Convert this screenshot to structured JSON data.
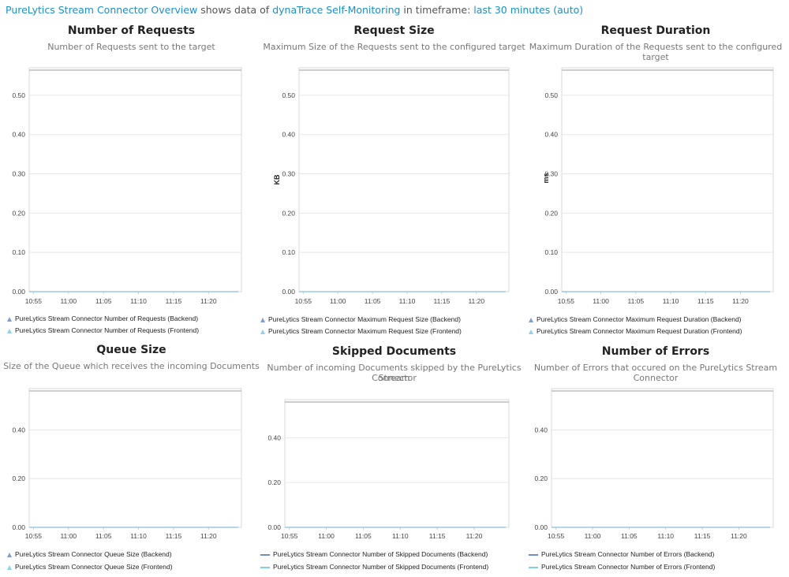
{
  "header": {
    "dashboard": "PureLytics Stream Connector Overview",
    "text1": "shows data of",
    "source": "dynaTrace Self-Monitoring",
    "text2": "in timeframe:",
    "timeframe": "last 30 minutes (auto)"
  },
  "colors": {
    "link": "#1a8fc9",
    "backend": "#7fa0cf",
    "frontend": "#8fd3e8",
    "grid": "#e6e6e6"
  },
  "panels": [
    {
      "title": "Number of Requests",
      "subtitle": [
        "Number of Requests sent to the target"
      ],
      "ylabel": "",
      "legend_style": "triangle",
      "legend": [
        "PureLytics Stream Connector Number of Requests (Backend)",
        "PureLytics Stream Connector Number of Requests (Frontend)"
      ]
    },
    {
      "title": "Request Size",
      "subtitle": [
        "Maximum Size of the Requests sent to the configured target"
      ],
      "ylabel": "KB",
      "legend_style": "triangle",
      "legend": [
        "PureLytics Stream Connector Maximum Request Size (Backend)",
        "PureLytics Stream Connector Maximum Request Size (Frontend)"
      ]
    },
    {
      "title": "Request Duration",
      "subtitle": [
        "Maximum Duration of the Requests sent to the configured target"
      ],
      "ylabel": "ms",
      "legend_style": "triangle",
      "legend": [
        "PureLytics Stream Connector Maximum Request Duration (Backend)",
        "PureLytics Stream Connector Maximum Request Duration (Frontend)"
      ]
    },
    {
      "title": "Queue Size",
      "subtitle": [
        "Size of the Queue which receives the incoming Documents"
      ],
      "ylabel": "",
      "legend_style": "triangle",
      "legend": [
        "PureLytics Stream Connector Queue Size (Backend)",
        "PureLytics Stream Connector Queue Size (Frontend)"
      ]
    },
    {
      "title": "Skipped Documents",
      "subtitle": [
        "Number of incoming Documents skipped by the PureLytics Stream",
        "Connector"
      ],
      "ylabel": "",
      "legend_style": "line",
      "legend": [
        "PureLytics Stream Connector Number of Skipped Documents (Backend)",
        "PureLytics Stream Connector Number of Skipped Documents (Frontend)"
      ]
    },
    {
      "title": "Number of Errors",
      "subtitle": [
        "Number of Errors that occured on the PureLytics Stream Connector"
      ],
      "ylabel": "",
      "legend_style": "line",
      "legend": [
        "PureLytics Stream Connector Number of Errors (Backend)",
        "PureLytics Stream Connector Number of Errors (Frontend)"
      ]
    }
  ],
  "chart_data": [
    {
      "type": "line",
      "title": "Number of Requests",
      "ylabel": "",
      "x": [
        "10:55",
        "11:00",
        "11:05",
        "11:10",
        "11:15",
        "11:20"
      ],
      "yticks": [
        "0.00",
        "0.10",
        "0.20",
        "0.30",
        "0.40",
        "0.50"
      ],
      "ylim": [
        0,
        0.57
      ],
      "grid": true,
      "legend": "bottom",
      "series": [
        {
          "name": "PureLytics Stream Connector Number of Requests (Backend)",
          "values": [
            0,
            0,
            0,
            0,
            0,
            0
          ]
        },
        {
          "name": "PureLytics Stream Connector Number of Requests (Frontend)",
          "values": [
            0,
            0,
            0,
            0,
            0,
            0
          ]
        }
      ]
    },
    {
      "type": "line",
      "title": "Request Size",
      "ylabel": "KB",
      "x": [
        "10:55",
        "11:00",
        "11:05",
        "11:10",
        "11:15",
        "11:20"
      ],
      "yticks": [
        "0.00",
        "0.10",
        "0.20",
        "0.30",
        "0.40",
        "0.50"
      ],
      "ylim": [
        0,
        0.57
      ],
      "grid": true,
      "legend": "bottom",
      "series": [
        {
          "name": "PureLytics Stream Connector Maximum Request Size (Backend)",
          "values": [
            0,
            0,
            0,
            0,
            0,
            0
          ]
        },
        {
          "name": "PureLytics Stream Connector Maximum Request Size (Frontend)",
          "values": [
            0,
            0,
            0,
            0,
            0,
            0
          ]
        }
      ]
    },
    {
      "type": "line",
      "title": "Request Duration",
      "ylabel": "ms",
      "x": [
        "10:55",
        "11:00",
        "11:05",
        "11:10",
        "11:15",
        "11:20"
      ],
      "yticks": [
        "0.00",
        "0.10",
        "0.20",
        "0.30",
        "0.40",
        "0.50"
      ],
      "ylim": [
        0,
        0.57
      ],
      "grid": true,
      "legend": "bottom",
      "series": [
        {
          "name": "PureLytics Stream Connector Maximum Request Duration (Backend)",
          "values": [
            0,
            0,
            0,
            0,
            0,
            0
          ]
        },
        {
          "name": "PureLytics Stream Connector Maximum Request Duration (Frontend)",
          "values": [
            0,
            0,
            0,
            0,
            0,
            0
          ]
        }
      ]
    },
    {
      "type": "line",
      "title": "Queue Size",
      "ylabel": "",
      "x": [
        "10:55",
        "11:00",
        "11:05",
        "11:10",
        "11:15",
        "11:20"
      ],
      "yticks": [
        "0.00",
        "0.20",
        "0.40"
      ],
      "ylim": [
        0,
        0.57
      ],
      "grid": true,
      "legend": "bottom",
      "series": [
        {
          "name": "PureLytics Stream Connector Queue Size (Backend)",
          "values": [
            0,
            0,
            0,
            0,
            0,
            0
          ]
        },
        {
          "name": "PureLytics Stream Connector Queue Size (Frontend)",
          "values": [
            0,
            0,
            0,
            0,
            0,
            0
          ]
        }
      ]
    },
    {
      "type": "line",
      "title": "Skipped Documents",
      "ylabel": "",
      "x": [
        "10:55",
        "11:00",
        "11:05",
        "11:10",
        "11:15",
        "11:20"
      ],
      "yticks": [
        "0.00",
        "0.20",
        "0.40"
      ],
      "ylim": [
        0,
        0.57
      ],
      "grid": true,
      "legend": "bottom",
      "series": [
        {
          "name": "PureLytics Stream Connector Number of Skipped Documents (Backend)",
          "values": [
            0,
            0,
            0,
            0,
            0,
            0
          ]
        },
        {
          "name": "PureLytics Stream Connector Number of Skipped Documents (Frontend)",
          "values": [
            0,
            0,
            0,
            0,
            0,
            0
          ]
        }
      ]
    },
    {
      "type": "line",
      "title": "Number of Errors",
      "ylabel": "",
      "x": [
        "10:55",
        "11:00",
        "11:05",
        "11:10",
        "11:15",
        "11:20"
      ],
      "yticks": [
        "0.00",
        "0.20",
        "0.40"
      ],
      "ylim": [
        0,
        0.57
      ],
      "grid": true,
      "legend": "bottom",
      "series": [
        {
          "name": "PureLytics Stream Connector Number of Errors (Backend)",
          "values": [
            0,
            0,
            0,
            0,
            0,
            0
          ]
        },
        {
          "name": "PureLytics Stream Connector Number of Errors (Frontend)",
          "values": [
            0,
            0,
            0,
            0,
            0,
            0
          ]
        }
      ]
    }
  ]
}
